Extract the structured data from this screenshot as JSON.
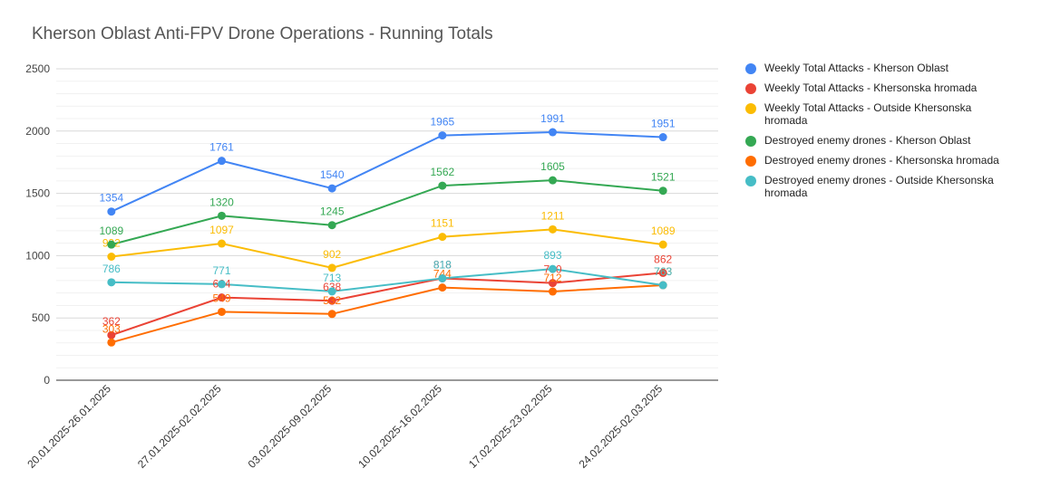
{
  "chart_data": {
    "type": "line",
    "title": "Kherson Oblast Anti-FPV Drone Operations - Running Totals",
    "xlabel": "",
    "ylabel": "",
    "ylim": [
      0,
      2500
    ],
    "yticks": [
      0,
      500,
      1000,
      1500,
      2000,
      2500
    ],
    "grid": true,
    "legend_position": "right",
    "categories": [
      "20.01.2025-26.01.2025",
      "27.01.2025-02.02.2025",
      "03.02.2025-09.02.2025",
      "10.02.2025-16.02.2025",
      "17.02.2025-23.02.2025",
      "24.02.2025-02.03.2025"
    ],
    "series": [
      {
        "name": "Weekly Total Attacks - Kherson Oblast",
        "color": "#4285f4",
        "values": [
          1354,
          1761,
          1540,
          1965,
          1991,
          1951
        ]
      },
      {
        "name": "Weekly Total Attacks - Khersonska hromada",
        "color": "#ea4335",
        "values": [
          362,
          664,
          638,
          818,
          780,
          862
        ]
      },
      {
        "name": "Weekly Total Attacks - Outside Khersonska hromada",
        "color": "#fbbc04",
        "values": [
          992,
          1097,
          902,
          1151,
          1211,
          1089
        ]
      },
      {
        "name": "Destroyed enemy drones - Kherson Oblast",
        "color": "#34a853",
        "values": [
          1089,
          1320,
          1245,
          1562,
          1605,
          1521
        ]
      },
      {
        "name": "Destroyed enemy drones - Khersonska hromada",
        "color": "#ff6d01",
        "values": [
          303,
          549,
          532,
          744,
          712,
          763
        ]
      },
      {
        "name": "Destroyed enemy drones - Outside Khersonska hromada",
        "color": "#46bdc6",
        "values": [
          786,
          771,
          713,
          818,
          893,
          763
        ]
      }
    ]
  }
}
